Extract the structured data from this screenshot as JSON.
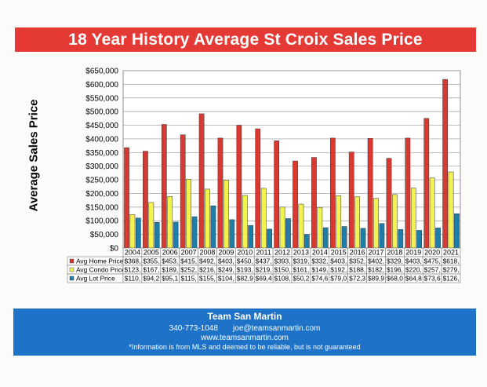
{
  "title": "18 Year History Average St Croix Sales Price",
  "footer": {
    "team": "Team San Martin",
    "phone": "340-773-1048",
    "email": "joe@teamsanmartin.com",
    "website": "www.teamsanmartin.com",
    "disclaimer": "*Information is from MLS and deemed to be reliable, but is not guaranteed"
  },
  "chart_data": {
    "type": "bar",
    "title": "18 Year History Average St Croix Sales Price",
    "xlabel": "",
    "ylabel": "Average Sales Price",
    "ylim": [
      0,
      650000
    ],
    "yticks": [
      "$0",
      "$50,000",
      "$100,000",
      "$150,000",
      "$200,000",
      "$250,000",
      "$300,000",
      "$350,000",
      "$400,000",
      "$450,000",
      "$500,000",
      "$550,000",
      "$600,000",
      "$650,000"
    ],
    "grid": true,
    "legend": "data-table",
    "categories": [
      "2004",
      "2005",
      "2006",
      "2007",
      "2008",
      "2009",
      "2010",
      "2011",
      "2012",
      "2013",
      "2014",
      "2015",
      "2016",
      "2017",
      "2018",
      "2019",
      "2020",
      "2021"
    ],
    "series": [
      {
        "name": "Avg Home Price",
        "color": "#d83a32",
        "values": [
          368000,
          355000,
          453000,
          415000,
          492000,
          403000,
          450000,
          437000,
          393000,
          319000,
          332000,
          403000,
          352000,
          402000,
          329000,
          403000,
          475000,
          618000
        ],
        "table": [
          "$368,",
          "$355,",
          "$453,",
          "$415,",
          "$492,",
          "$403,",
          "$450,",
          "$437,",
          "$393,",
          "$319,",
          "$332,",
          "$403,",
          "$352,",
          "$402,",
          "$329,",
          "$403,",
          "$475,",
          "$618,"
        ]
      },
      {
        "name": "Avg Condo Price",
        "color": "#f2f250",
        "values": [
          123000,
          167000,
          189000,
          252000,
          216000,
          249000,
          193000,
          219000,
          150000,
          161000,
          149000,
          192000,
          188000,
          182000,
          196000,
          220000,
          257000,
          279000
        ],
        "table": [
          "$123,",
          "$167,",
          "$189,",
          "$252,",
          "$216,",
          "$249,",
          "$193,",
          "$219,",
          "$150,",
          "$161,",
          "$149,",
          "$192,",
          "$188,",
          "$182,",
          "$196,",
          "$220,",
          "$257,",
          "$279,"
        ]
      },
      {
        "name": "Avg Lot Price",
        "color": "#1f7ea8",
        "values": [
          110000,
          94200,
          95100,
          115000,
          155000,
          104000,
          82900,
          69400,
          108000,
          50200,
          74600,
          79000,
          72300,
          89900,
          68000,
          64800,
          73600,
          126000
        ],
        "table": [
          "$110,",
          "$94,2",
          "$95,1",
          "$115,",
          "$155,",
          "$104,",
          "$82,9",
          "$69,4",
          "$108,",
          "$50,2",
          "$74,6",
          "$79,0",
          "$72,3",
          "$89,9",
          "$68,0",
          "$64,8",
          "$73,6",
          "$126,"
        ]
      }
    ]
  }
}
